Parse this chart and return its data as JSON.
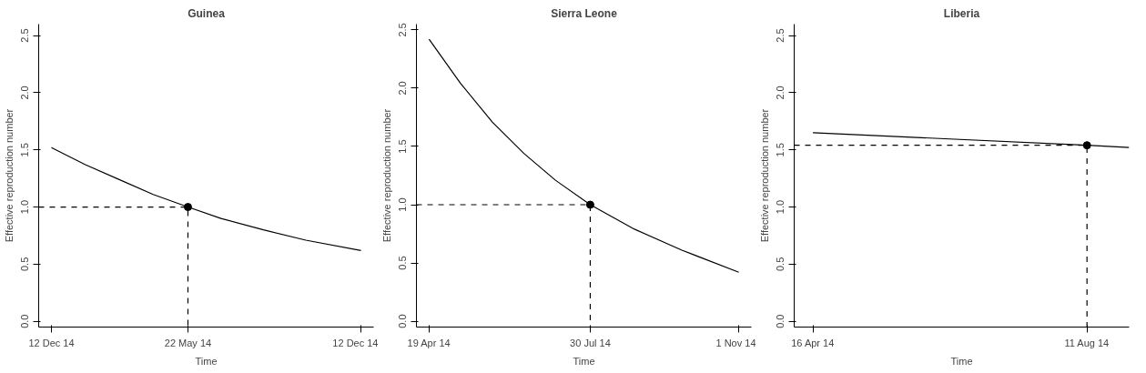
{
  "chart_data": [
    {
      "type": "line",
      "title": "Guinea",
      "xlabel": "Time",
      "ylabel": "Effective reproduction number",
      "grid": false,
      "xlim": [
        "2013-11-27",
        "2014-12-27"
      ],
      "xticks": [
        {
          "value": "2013-12-12",
          "label": "12 Dec 14"
        },
        {
          "value": "2014-05-22",
          "label": "22 May 14"
        },
        {
          "value": "2014-12-12",
          "label": "12 Dec 14"
        }
      ],
      "ylim": [
        -0.05,
        2.6
      ],
      "yticks": [
        {
          "value": 0,
          "label": "0.0"
        },
        {
          "value": 0.5,
          "label": "0.5"
        },
        {
          "value": 1,
          "label": "1.0"
        },
        {
          "value": 1.5,
          "label": "1.5"
        },
        {
          "value": 2,
          "label": "2.0"
        },
        {
          "value": 2.5,
          "label": "2.5"
        }
      ],
      "series": [
        {
          "color": "#000000",
          "x": [
            "2013-12-12",
            "2014-01-21",
            "2014-03-02",
            "2014-04-11",
            "2014-05-22",
            "2014-06-30",
            "2014-08-19",
            "2014-10-08",
            "2014-12-12"
          ],
          "values": [
            1.52,
            1.37,
            1.24,
            1.11,
            1.0,
            0.9,
            0.8,
            0.71,
            0.62
          ]
        },
        {
          "color": "#000000",
          "line_style": "dashed",
          "x": [
            "2013-11-27",
            "2014-05-22",
            "2014-05-22"
          ],
          "values": [
            1.0,
            1.0,
            -0.05
          ]
        },
        {
          "type": "scatter",
          "marker": "circle",
          "color": "#000000",
          "x": [
            "2014-05-22"
          ],
          "values": [
            1.0
          ]
        }
      ]
    },
    {
      "type": "line",
      "title": "Sierra Leone",
      "xlabel": "Time",
      "ylabel": "Effective reproduction number",
      "grid": false,
      "xlim": [
        "2014-04-11",
        "2014-11-09"
      ],
      "xticks": [
        {
          "value": "2014-04-19",
          "label": "19 Apr 14"
        },
        {
          "value": "2014-07-30",
          "label": "30 Jul 14"
        },
        {
          "value": "2014-11-01",
          "label": "1 Nov 14"
        }
      ],
      "ylim": [
        -0.05,
        2.55
      ],
      "yticks": [
        {
          "value": 0,
          "label": "0.0"
        },
        {
          "value": 0.5,
          "label": "0.5"
        },
        {
          "value": 1,
          "label": "1.0"
        },
        {
          "value": 1.5,
          "label": "1.5"
        },
        {
          "value": 2,
          "label": "2.0"
        },
        {
          "value": 2.5,
          "label": "2.5"
        }
      ],
      "series": [
        {
          "color": "#000000",
          "x": [
            "2014-04-19",
            "2014-05-09",
            "2014-05-29",
            "2014-06-18",
            "2014-07-08",
            "2014-07-30",
            "2014-08-27",
            "2014-09-26",
            "2014-11-01"
          ],
          "values": [
            2.42,
            2.04,
            1.71,
            1.44,
            1.21,
            1.0,
            0.79,
            0.61,
            0.42
          ]
        },
        {
          "color": "#000000",
          "line_style": "dashed",
          "x": [
            "2014-04-11",
            "2014-07-30",
            "2014-07-30"
          ],
          "values": [
            1.0,
            1.0,
            -0.05
          ]
        },
        {
          "type": "scatter",
          "marker": "circle",
          "color": "#000000",
          "x": [
            "2014-07-30"
          ],
          "values": [
            1.0
          ]
        }
      ]
    },
    {
      "type": "line",
      "title": "Liberia",
      "xlabel": "Time",
      "ylabel": "Effective reproduction number",
      "grid": false,
      "xlim": [
        "2014-04-08",
        "2014-08-29"
      ],
      "xticks": [
        {
          "value": "2014-04-16",
          "label": "16 Apr 14"
        },
        {
          "value": "2014-08-11",
          "label": "11 Aug 14"
        }
      ],
      "ylim": [
        -0.05,
        2.6
      ],
      "yticks": [
        {
          "value": 0,
          "label": "0.0"
        },
        {
          "value": 0.5,
          "label": "0.5"
        },
        {
          "value": 1,
          "label": "1.0"
        },
        {
          "value": 1.5,
          "label": "1.5"
        },
        {
          "value": 2,
          "label": "2.0"
        },
        {
          "value": 2.5,
          "label": "2.5"
        }
      ],
      "series": [
        {
          "color": "#000000",
          "x": [
            "2014-04-16",
            "2014-08-11",
            "2014-08-29"
          ],
          "values": [
            1.65,
            1.54,
            1.52
          ]
        },
        {
          "color": "#000000",
          "line_style": "dashed",
          "x": [
            "2014-04-08",
            "2014-08-11",
            "2014-08-11"
          ],
          "values": [
            1.54,
            1.54,
            -0.05
          ]
        },
        {
          "type": "scatter",
          "marker": "circle",
          "color": "#000000",
          "x": [
            "2014-08-11"
          ],
          "values": [
            1.54
          ]
        }
      ]
    }
  ]
}
